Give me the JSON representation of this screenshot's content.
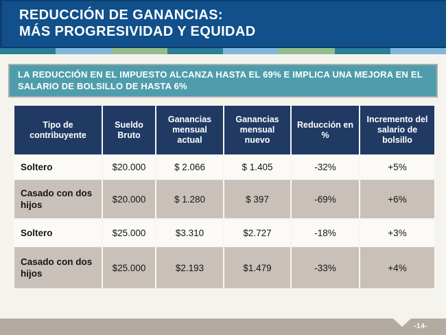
{
  "slide": {
    "title_line1": "REDUCCIÓN DE GANANCIAS:",
    "title_line2": "MÁS PROGRESIVIDAD Y EQUIDAD",
    "subtitle": "LA REDUCCIÓN EN EL IMPUESTO ALCANZA HASTA EL 69% E IMPLICA UNA MEJORA EN EL SALARIO DE BOLSILLO DE HASTA 6%",
    "page_number": "-14-"
  },
  "table": {
    "columns": [
      "Tipo de contribuyente",
      "Sueldo Bruto",
      "Ganancias mensual actual",
      "Ganancias mensual nuevo",
      "Reducción en %",
      "Incremento del salario de bolsillo"
    ],
    "rows": [
      [
        "Soltero",
        "$20.000",
        "$ 2.066",
        "$ 1.405",
        "-32%",
        "+5%"
      ],
      [
        "Casado con dos hijos",
        "$20.000",
        "$ 1.280",
        "$ 397",
        "-69%",
        "+6%"
      ],
      [
        "Soltero",
        "$25.000",
        "$3.310",
        "$2.727",
        "-18%",
        "+3%"
      ],
      [
        "Casado con dos hijos",
        "$25.000",
        "$2.193",
        "$1.479",
        "-33%",
        "+4%"
      ]
    ]
  },
  "colors": {
    "title_bar_bg": "#11508b",
    "strip": [
      "#2b7f96",
      "#7fb8da",
      "#92bd8d",
      "#2b7f96",
      "#7fb8da",
      "#92bd8d",
      "#2b7f96",
      "#7fb8da"
    ],
    "subtitle_bg": "#4f9dac",
    "table_header_bg": "#203a64",
    "row_light_bg": "#fbfaf7",
    "row_shaded_bg": "#c9c1b9",
    "footer_bg": "#b3aba2",
    "page_bg": "#f5f3ee"
  }
}
